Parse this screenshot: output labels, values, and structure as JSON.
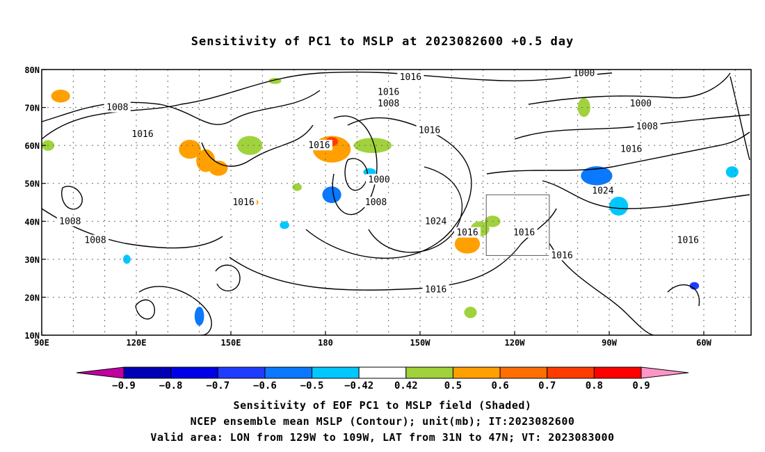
{
  "title": "Sensitivity of PC1 to MSLP at 2023082600 +0.5 day",
  "map": {
    "lon_labels": [
      {
        "value": 90,
        "label": "90E"
      },
      {
        "value": 120,
        "label": "120E"
      },
      {
        "value": 150,
        "label": "150E"
      },
      {
        "value": 180,
        "label": "180"
      },
      {
        "value": 210,
        "label": "150W"
      },
      {
        "value": 240,
        "label": "120W"
      },
      {
        "value": 270,
        "label": "90W"
      },
      {
        "value": 300,
        "label": "60W"
      }
    ],
    "lat_labels": [
      {
        "value": 80,
        "label": "80N"
      },
      {
        "value": 70,
        "label": "70N"
      },
      {
        "value": 60,
        "label": "60N"
      },
      {
        "value": 50,
        "label": "50N"
      },
      {
        "value": 40,
        "label": "40N"
      },
      {
        "value": 30,
        "label": "30N"
      },
      {
        "value": 20,
        "label": "20N"
      },
      {
        "value": 10,
        "label": "10N"
      }
    ],
    "lon_range": [
      90,
      315
    ],
    "lat_range": [
      10,
      80
    ],
    "grid": "dotted",
    "valid_box": {
      "lon_west": 231,
      "lon_east": 251,
      "lat_south": 31,
      "lat_north": 47
    },
    "contour_labels": [
      {
        "text": "1016",
        "lon": 207,
        "lat": 78
      },
      {
        "text": "1000",
        "lon": 262,
        "lat": 79
      },
      {
        "text": "1016",
        "lon": 200,
        "lat": 74
      },
      {
        "text": "1008",
        "lon": 200,
        "lat": 71
      },
      {
        "text": "1008",
        "lon": 114,
        "lat": 70
      },
      {
        "text": "1000",
        "lon": 280,
        "lat": 71
      },
      {
        "text": "1008",
        "lon": 282,
        "lat": 65
      },
      {
        "text": "1016",
        "lon": 122,
        "lat": 63
      },
      {
        "text": "1016",
        "lon": 213,
        "lat": 64
      },
      {
        "text": "1016",
        "lon": 178,
        "lat": 60
      },
      {
        "text": "1016",
        "lon": 277,
        "lat": 59
      },
      {
        "text": "1000",
        "lon": 197,
        "lat": 51
      },
      {
        "text": "1024",
        "lon": 268,
        "lat": 48
      },
      {
        "text": "1008",
        "lon": 196,
        "lat": 45
      },
      {
        "text": "1016",
        "lon": 154,
        "lat": 45
      },
      {
        "text": "1024",
        "lon": 215,
        "lat": 40
      },
      {
        "text": "1008",
        "lon": 99,
        "lat": 40
      },
      {
        "text": "1016",
        "lon": 225,
        "lat": 37
      },
      {
        "text": "1016",
        "lon": 243,
        "lat": 37
      },
      {
        "text": "1016",
        "lon": 255,
        "lat": 31
      },
      {
        "text": "1016",
        "lon": 295,
        "lat": 35
      },
      {
        "text": "1008",
        "lon": 107,
        "lat": 35
      },
      {
        "text": "1016",
        "lon": 215,
        "lat": 22
      }
    ],
    "shaded": [
      {
        "lon": 96,
        "lat": 73,
        "rx": 3,
        "ry": 1.7,
        "level": "0.6"
      },
      {
        "lon": 137,
        "lat": 59,
        "rx": 3.5,
        "ry": 2.5,
        "level": "0.6"
      },
      {
        "lon": 142,
        "lat": 56,
        "rx": 3,
        "ry": 3,
        "level": "0.6"
      },
      {
        "lon": 146,
        "lat": 54,
        "rx": 3,
        "ry": 2,
        "level": "0.6"
      },
      {
        "lon": 156,
        "lat": 60,
        "rx": 4,
        "ry": 2.5,
        "level": "0.5"
      },
      {
        "lon": 182,
        "lat": 59,
        "rx": 6,
        "ry": 3.5,
        "level": "0.6"
      },
      {
        "lon": 182,
        "lat": 61,
        "rx": 2,
        "ry": 1.2,
        "level": "0.8"
      },
      {
        "lon": 195,
        "lat": 60,
        "rx": 6,
        "ry": 2,
        "level": "0.5"
      },
      {
        "lon": 225,
        "lat": 34,
        "rx": 4,
        "ry": 2.5,
        "level": "0.6"
      },
      {
        "lon": 229,
        "lat": 38,
        "rx": 3,
        "ry": 2,
        "level": "0.5"
      },
      {
        "lon": 233,
        "lat": 40,
        "rx": 2.5,
        "ry": 1.5,
        "level": "0.5"
      },
      {
        "lon": 226,
        "lat": 16,
        "rx": 2,
        "ry": 1.5,
        "level": "0.5"
      },
      {
        "lon": 164,
        "lat": 77,
        "rx": 2,
        "ry": 0.8,
        "level": "0.5"
      },
      {
        "lon": 262,
        "lat": 70,
        "rx": 2,
        "ry": 2.5,
        "level": "0.5"
      },
      {
        "lon": 92,
        "lat": 60,
        "rx": 2,
        "ry": 1.4,
        "level": "0.5"
      },
      {
        "lon": 157,
        "lat": 45,
        "rx": 1.7,
        "ry": 1,
        "level": "0.6"
      },
      {
        "lon": 171,
        "lat": 49,
        "rx": 1.5,
        "ry": 1,
        "level": "0.5"
      },
      {
        "lon": 182,
        "lat": 47,
        "rx": 3,
        "ry": 2.2,
        "level": "-0.6"
      },
      {
        "lon": 194,
        "lat": 53,
        "rx": 2,
        "ry": 1,
        "level": "-0.5"
      },
      {
        "lon": 266,
        "lat": 52,
        "rx": 5,
        "ry": 2.5,
        "level": "-0.6"
      },
      {
        "lon": 273,
        "lat": 44,
        "rx": 3,
        "ry": 2.5,
        "level": "-0.5"
      },
      {
        "lon": 297,
        "lat": 23,
        "rx": 1.5,
        "ry": 1,
        "level": "-0.7"
      },
      {
        "lon": 140,
        "lat": 15,
        "rx": 1.5,
        "ry": 2.5,
        "level": "-0.6"
      },
      {
        "lon": 309,
        "lat": 53,
        "rx": 2,
        "ry": 1.5,
        "level": "-0.5"
      },
      {
        "lon": 117,
        "lat": 30,
        "rx": 1.2,
        "ry": 1.2,
        "level": "-0.5"
      },
      {
        "lon": 167,
        "lat": 39,
        "rx": 1.5,
        "ry": 1,
        "level": "-0.5"
      }
    ]
  },
  "colorbar": {
    "labels": [
      "−0.9",
      "−0.8",
      "−0.7",
      "−0.6",
      "−0.5",
      "−0.42",
      "0.42",
      "0.5",
      "0.6",
      "0.7",
      "0.8",
      "0.9"
    ],
    "colors": [
      "#c000a0",
      "#0000b4",
      "#0000e6",
      "#1e3cff",
      "#0a78ff",
      "#00c8ff",
      "#ffffff",
      "#a0d23c",
      "#ffa000",
      "#ff6e00",
      "#ff3c00",
      "#ff0000",
      "#ff96c8"
    ]
  },
  "captions": {
    "line1": "Sensitivity of EOF PC1 to MSLP field (Shaded)",
    "line2": "NCEP ensemble mean MSLP (Contour); unit(mb); IT:2023082600",
    "line3": "Valid area: LON from 129W to 109W, LAT from 31N to 47N; VT: 2023083000"
  }
}
